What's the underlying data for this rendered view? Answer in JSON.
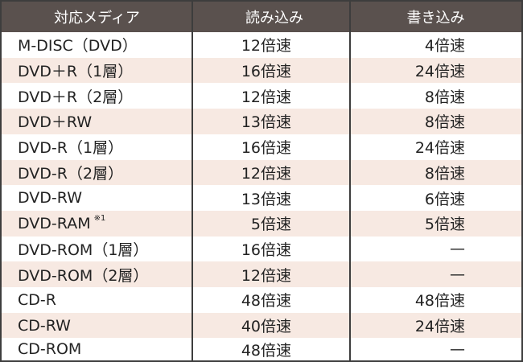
{
  "header": {
    "media": "対応メディア",
    "read": "読み込み",
    "write": "書き込み"
  },
  "rows": [
    {
      "media": "M-DISC（DVD）",
      "note": "",
      "read": "12倍速",
      "write": "4倍速"
    },
    {
      "media": "DVD＋R（1層）",
      "note": "",
      "read": "16倍速",
      "write": "24倍速"
    },
    {
      "media": "DVD＋R（2層）",
      "note": "",
      "read": "12倍速",
      "write": "8倍速"
    },
    {
      "media": "DVD＋RW",
      "note": "",
      "read": "13倍速",
      "write": "8倍速"
    },
    {
      "media": "DVD-R（1層）",
      "note": "",
      "read": "16倍速",
      "write": "24倍速"
    },
    {
      "media": "DVD-R（2層）",
      "note": "",
      "read": "12倍速",
      "write": "8倍速"
    },
    {
      "media": "DVD-RW",
      "note": "",
      "read": "13倍速",
      "write": "6倍速"
    },
    {
      "media": "DVD-RAM",
      "note": "※1",
      "read": "5倍速",
      "write": "5倍速"
    },
    {
      "media": "DVD-ROM（1層）",
      "note": "",
      "read": "16倍速",
      "write": "—"
    },
    {
      "media": "DVD-ROM（2層）",
      "note": "",
      "read": "12倍速",
      "write": "—"
    },
    {
      "media": "CD-R",
      "note": "",
      "read": "48倍速",
      "write": "48倍速"
    },
    {
      "media": "CD-RW",
      "note": "",
      "read": "40倍速",
      "write": "24倍速"
    },
    {
      "media": "CD-ROM",
      "note": "",
      "read": "48倍速",
      "write": "—"
    }
  ],
  "colors": {
    "header_bg": "#5a514e",
    "row_alt": "#f7e9e2",
    "border": "#3d3d3d"
  }
}
